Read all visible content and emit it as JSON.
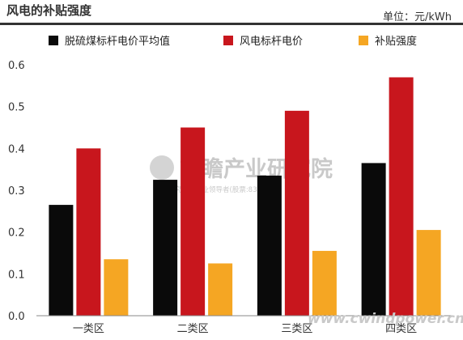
{
  "header": {
    "title": "风电的补贴强度",
    "unit": "单位：元/kWh"
  },
  "colors": {
    "coal": "#0a0a0a",
    "wind": "#c8161d",
    "subsidy": "#f5a623"
  },
  "watermarks": {
    "main": "前瞻产业研究院",
    "sub": "中国研究咨询行业领导者(股票:839599)",
    "site": "www.cwindpower.cn"
  },
  "chart_data": {
    "type": "bar",
    "title": "风电的补贴强度",
    "ylabel": "单位：元/kWh",
    "xlabel": "",
    "categories": [
      "一类区",
      "二类区",
      "三类区",
      "四类区"
    ],
    "series": [
      {
        "name": "脱硫煤标杆电价平均值",
        "values": [
          0.265,
          0.325,
          0.335,
          0.365
        ]
      },
      {
        "name": "风电标杆电价",
        "values": [
          0.4,
          0.45,
          0.49,
          0.57
        ]
      },
      {
        "name": "补贴强度",
        "values": [
          0.135,
          0.125,
          0.155,
          0.205
        ]
      }
    ],
    "ylim": [
      0,
      0.6
    ],
    "yticks": [
      "0.0",
      "0.1",
      "0.2",
      "0.3",
      "0.4",
      "0.5",
      "0.6"
    ],
    "grid": false,
    "legend_position": "top"
  }
}
